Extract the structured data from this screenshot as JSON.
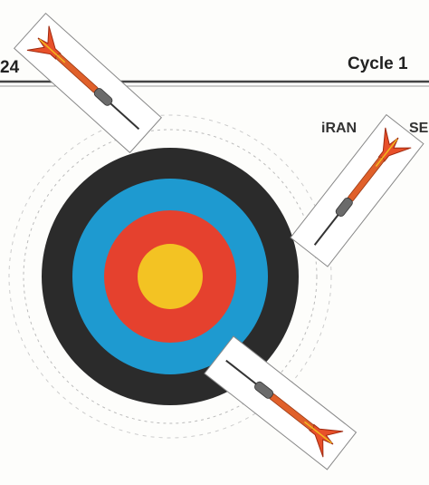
{
  "header": {
    "page": "24",
    "cycle": "Cycle 1"
  },
  "fragment": {
    "left": "iRAN",
    "right": "SE"
  }
}
